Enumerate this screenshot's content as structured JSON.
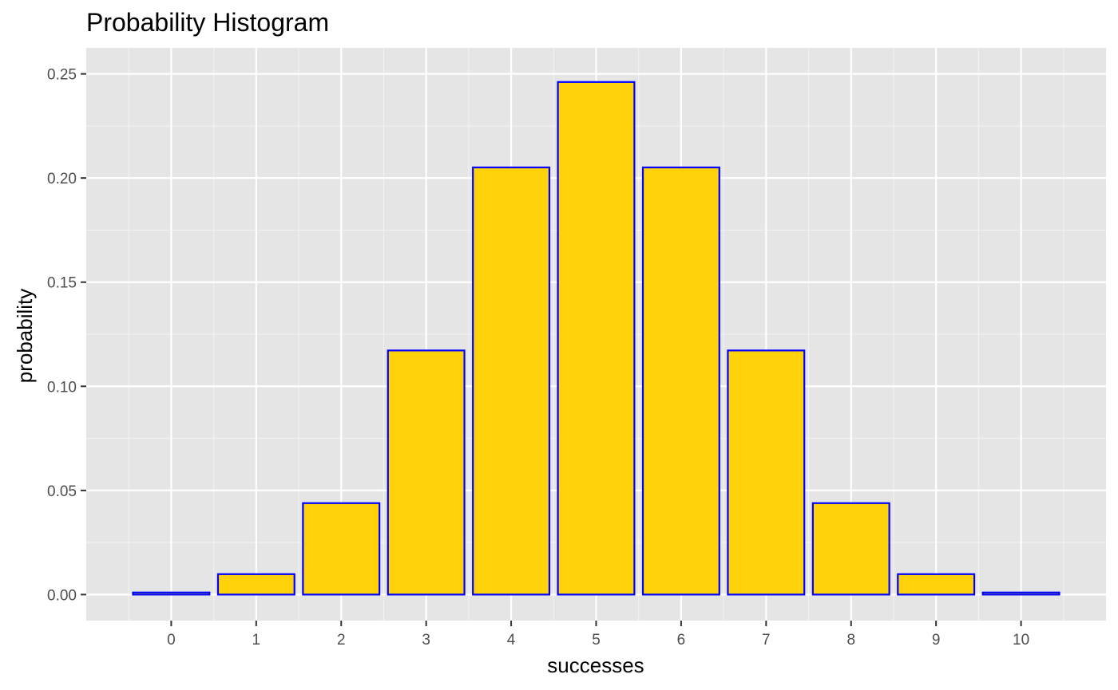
{
  "chart_data": {
    "type": "bar",
    "title": "Probability Histogram",
    "xlabel": "successes",
    "ylabel": "probability",
    "categories": [
      "0",
      "1",
      "2",
      "3",
      "4",
      "5",
      "6",
      "7",
      "8",
      "9",
      "10"
    ],
    "values": [
      0.001,
      0.0098,
      0.0439,
      0.1172,
      0.2051,
      0.2461,
      0.2051,
      0.1172,
      0.0439,
      0.0098,
      0.001
    ],
    "xlim": [
      -0.5,
      10.5
    ],
    "ylim": [
      0,
      0.25
    ],
    "y_ticks": [
      "0.00",
      "0.05",
      "0.10",
      "0.15",
      "0.20",
      "0.25"
    ],
    "grid": true,
    "legend": "none",
    "colors": {
      "bar_fill": "#FFD20A",
      "bar_outline": "#0000FF",
      "panel_background": "#E5E5E5",
      "grid_major": "#FFFFFF",
      "grid_minor": "#F2F2F2",
      "tick_text": "#4D4D4D",
      "tick_mark": "#333333"
    }
  }
}
